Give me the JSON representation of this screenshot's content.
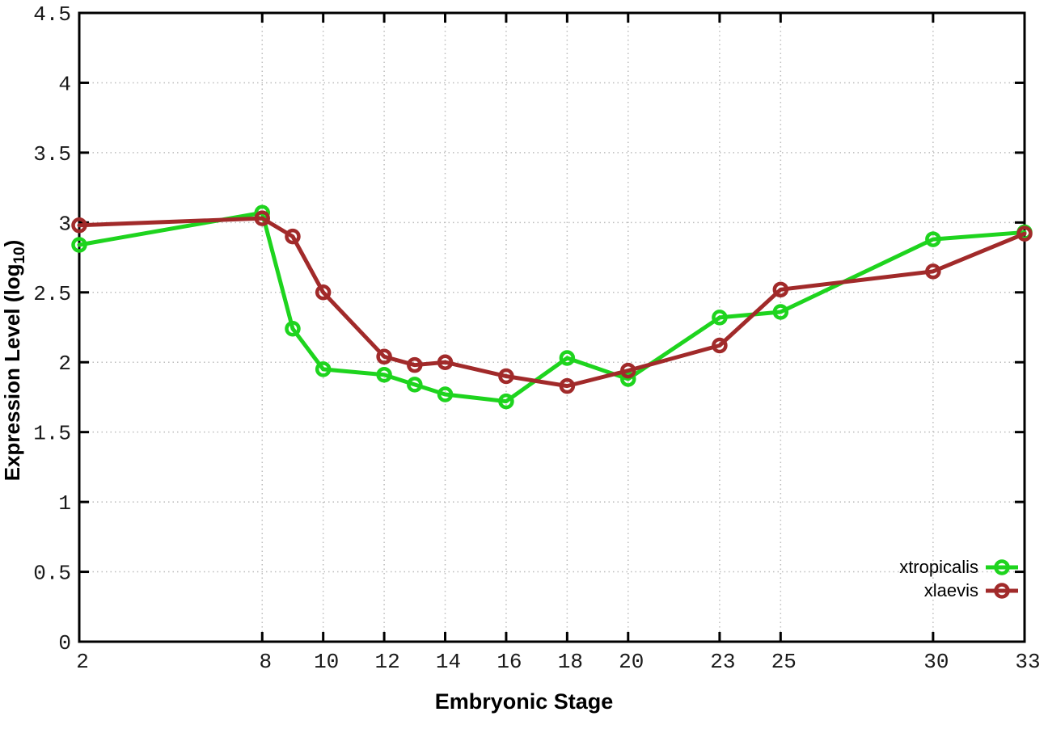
{
  "figure": {
    "background": "#ffffff",
    "grid_color": "#bcbcbc",
    "axis_color": "#000000",
    "tick_label_color": "#1a1a1a"
  },
  "axes": {
    "x_label": "Embryonic Stage",
    "y_label_main": "Expression Level (log",
    "y_label_sub": "10",
    "y_label_close": ")"
  },
  "legend": {
    "position": "bottom-right",
    "entries": [
      {
        "label": "xtropicalis",
        "color": "#1ed41e"
      },
      {
        "label": "xlaevis",
        "color": "#a12a2a"
      }
    ]
  },
  "chart_data": {
    "type": "line",
    "title": "",
    "xlabel": "Embryonic Stage",
    "ylabel": "Expression Level (log10)",
    "xlim": [
      2,
      33
    ],
    "ylim": [
      0,
      4.5
    ],
    "grid": true,
    "marker": "open-circle",
    "legend_position": "bottom-right",
    "x_tick_values": [
      2,
      8,
      10,
      12,
      14,
      16,
      18,
      20,
      23,
      25,
      30,
      33
    ],
    "x_tick_labels": [
      "2",
      "8",
      "10",
      "12",
      "14",
      "16",
      "18",
      "20",
      "23",
      "25",
      "30",
      "33"
    ],
    "y_tick_values": [
      0,
      0.5,
      1,
      1.5,
      2,
      2.5,
      3,
      3.5,
      4,
      4.5
    ],
    "y_tick_labels": [
      "0",
      "0.5",
      "1",
      "1.5",
      "2",
      "2.5",
      "3",
      "3.5",
      "4",
      "4.5"
    ],
    "x": [
      2,
      8,
      9,
      10,
      12,
      13,
      14,
      16,
      18,
      20,
      23,
      25,
      30,
      33
    ],
    "series": [
      {
        "name": "xtropicalis",
        "color": "#1ed41e",
        "values": [
          2.84,
          3.07,
          2.24,
          1.95,
          1.91,
          1.84,
          1.77,
          1.72,
          2.03,
          1.88,
          2.32,
          2.36,
          2.88,
          2.93
        ]
      },
      {
        "name": "xlaevis",
        "color": "#a12a2a",
        "values": [
          2.98,
          3.03,
          2.9,
          2.5,
          2.04,
          1.98,
          2.0,
          1.9,
          1.83,
          1.94,
          2.12,
          2.52,
          2.65,
          2.92
        ]
      }
    ]
  }
}
